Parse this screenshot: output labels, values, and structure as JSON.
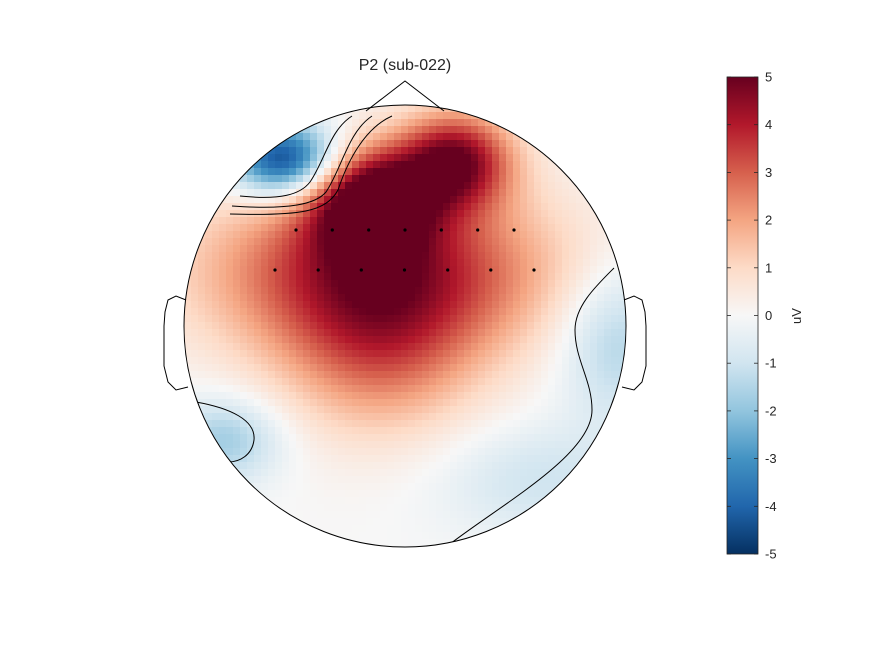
{
  "chart_data": {
    "type": "heatmap",
    "subtype": "eeg-topographic-scalp-map",
    "title": "P2 (sub-022)",
    "colorbar": {
      "label": "uV",
      "limits": [
        -5,
        5
      ],
      "ticks": [
        "5",
        "4",
        "3",
        "2",
        "1",
        "0",
        "-1",
        "-2",
        "-3",
        "-4",
        "-5"
      ],
      "colormap": "diverging blue-white-red",
      "stops": [
        "#053061",
        "#2166ac",
        "#4393c3",
        "#92c5de",
        "#d1e5f0",
        "#f7f7f7",
        "#fddbc7",
        "#f4a582",
        "#d6604d",
        "#b2182b",
        "#67001f"
      ]
    },
    "field_sources": [
      {
        "region": "left-frontal pole",
        "value_uv": -5.0
      },
      {
        "region": "frontal midline",
        "value_uv": 5.0
      },
      {
        "region": "right-frontal",
        "value_uv": 4.6
      },
      {
        "region": "fronto-central",
        "value_uv": 4.2
      },
      {
        "region": "central",
        "value_uv": 2.2
      },
      {
        "region": "right-temporal",
        "value_uv": -1.6
      },
      {
        "region": "left-temporal-occipital",
        "value_uv": -1.8
      },
      {
        "region": "right-occipital",
        "value_uv": -1.0
      }
    ],
    "contour_levels_uv": [
      -4,
      -3,
      -2,
      -1
    ],
    "electrodes_row_1": 7,
    "electrodes_row_2": 7
  }
}
